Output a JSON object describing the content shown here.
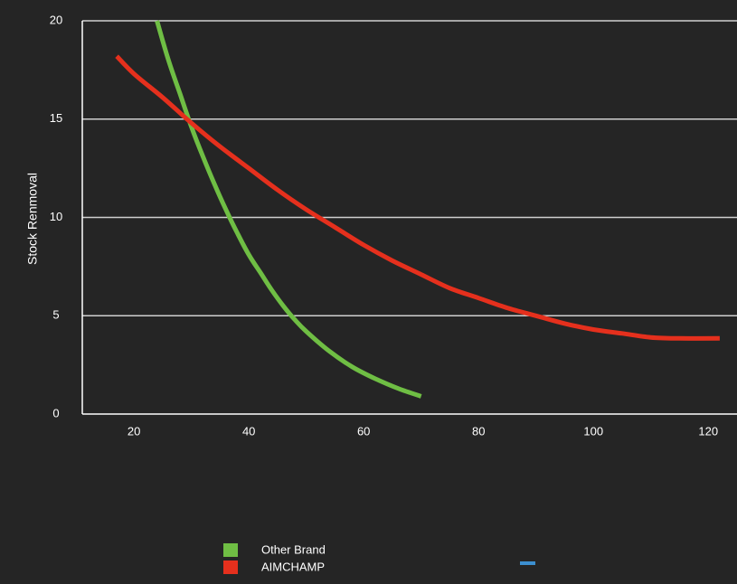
{
  "chart_data": {
    "type": "line",
    "title": "",
    "xlabel": "",
    "ylabel": "Stock Renmoval",
    "xlim": [
      11,
      125
    ],
    "ylim": [
      0,
      20
    ],
    "x_ticks": [
      20,
      40,
      60,
      80,
      100,
      120
    ],
    "y_ticks": [
      0,
      5,
      10,
      15,
      20
    ],
    "grid": "horizontal",
    "legend_position": "bottom-center",
    "background": "#252525",
    "series": [
      {
        "name": "Other Brand",
        "color": "#6fbe44",
        "points": [
          [
            24,
            20.0
          ],
          [
            26,
            18.0
          ],
          [
            28,
            16.3
          ],
          [
            30,
            14.6
          ],
          [
            32,
            13.1
          ],
          [
            34,
            11.7
          ],
          [
            36,
            10.4
          ],
          [
            38,
            9.2
          ],
          [
            40,
            8.1
          ],
          [
            42,
            7.2
          ],
          [
            44,
            6.3
          ],
          [
            46,
            5.5
          ],
          [
            48,
            4.8
          ],
          [
            50,
            4.2
          ],
          [
            54,
            3.2
          ],
          [
            58,
            2.4
          ],
          [
            62,
            1.8
          ],
          [
            66,
            1.3
          ],
          [
            70,
            0.9
          ]
        ]
      },
      {
        "name": "AIMCHAMP",
        "color": "#e5301d",
        "points": [
          [
            17,
            18.2
          ],
          [
            20,
            17.3
          ],
          [
            25,
            16.1
          ],
          [
            30,
            14.8
          ],
          [
            35,
            13.6
          ],
          [
            40,
            12.5
          ],
          [
            45,
            11.4
          ],
          [
            50,
            10.4
          ],
          [
            55,
            9.5
          ],
          [
            60,
            8.6
          ],
          [
            65,
            7.8
          ],
          [
            70,
            7.1
          ],
          [
            75,
            6.4
          ],
          [
            80,
            5.9
          ],
          [
            85,
            5.4
          ],
          [
            90,
            5.0
          ],
          [
            95,
            4.6
          ],
          [
            100,
            4.3
          ],
          [
            105,
            4.1
          ],
          [
            110,
            3.9
          ],
          [
            115,
            3.85
          ],
          [
            122,
            3.85
          ]
        ]
      },
      {
        "name": "",
        "color": "#3c8fd0",
        "points": []
      }
    ]
  }
}
